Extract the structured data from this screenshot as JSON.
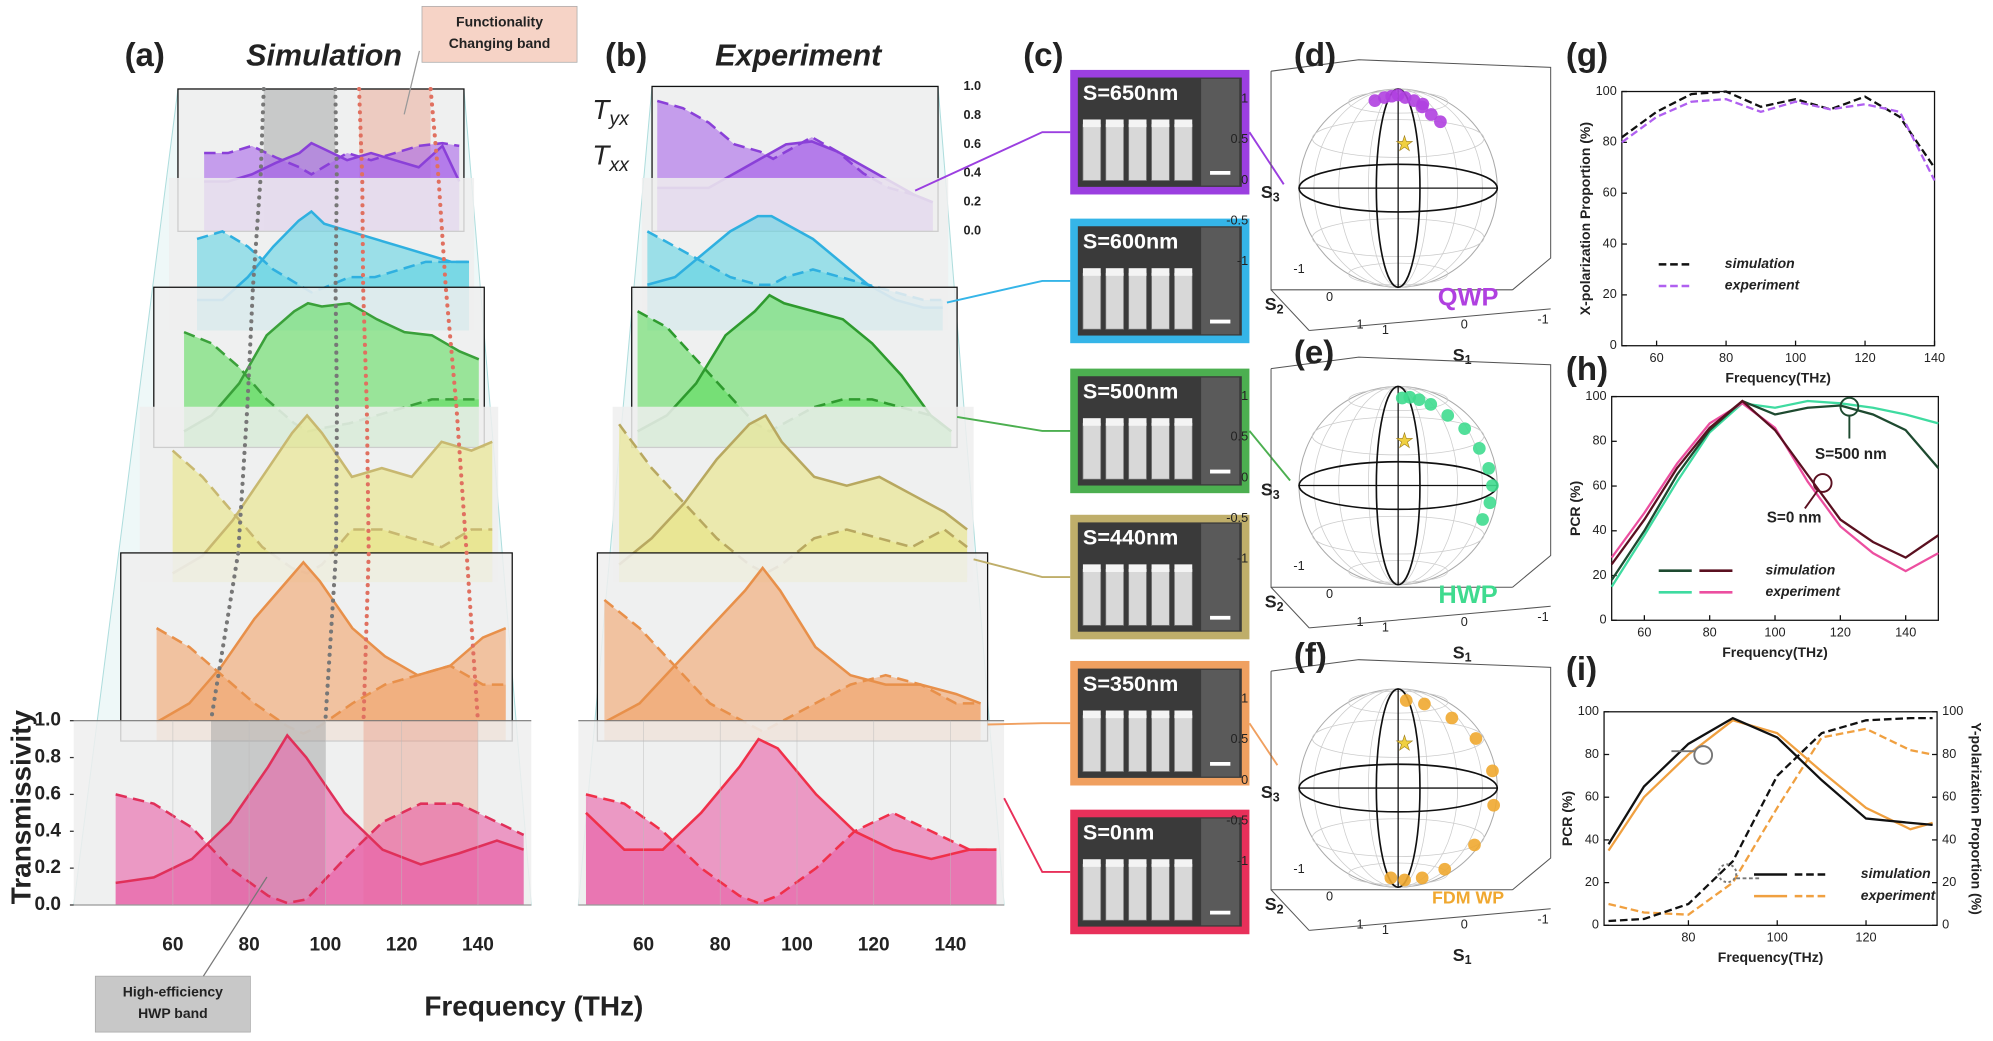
{
  "waterfall": {
    "x": [
      45,
      55,
      65,
      75,
      85,
      90,
      95,
      105,
      115,
      125,
      135,
      145,
      152
    ],
    "ylim": [
      0,
      1
    ],
    "yticks": [
      {
        "value": 0,
        "label": "0.0"
      },
      0.2,
      0.4,
      0.6,
      0.8,
      {
        "value": 1,
        "label": "1.0"
      }
    ],
    "xticks": [
      60,
      80,
      100,
      120,
      140
    ],
    "ylabel": "Transmissivity",
    "xlabel": "Frequency (THz)",
    "legend": [
      {
        "symbol": "T",
        "sub": "yx"
      },
      {
        "symbol": "T",
        "sub": "xx"
      }
    ],
    "bands": [
      {
        "range": [
          70,
          100
        ],
        "color": "#9a9a9a",
        "note": [
          "High-efficiency",
          "HWP band"
        ]
      },
      {
        "range": [
          110,
          140
        ],
        "color": "#ec9d88",
        "note": [
          "Functionality",
          "Changing band"
        ]
      }
    ],
    "panels": [
      {
        "label": "(a)",
        "title": "Simulation",
        "xlim": [
          34,
          154
        ],
        "layers": [
          {
            "color": "#e85fa6",
            "line": "#e0305a",
            "tyx": [
              0.12,
              0.15,
              0.25,
              0.45,
              0.75,
              0.92,
              0.8,
              0.5,
              0.3,
              0.22,
              0.28,
              0.35,
              0.3
            ],
            "txx": [
              0.6,
              0.55,
              0.42,
              0.2,
              0.05,
              0.01,
              0.03,
              0.25,
              0.45,
              0.55,
              0.55,
              0.45,
              0.38
            ]
          },
          {
            "color": "#f2a46a",
            "line": "#e8904a",
            "tyx": [
              0.1,
              0.2,
              0.4,
              0.65,
              0.85,
              0.95,
              0.85,
              0.6,
              0.45,
              0.35,
              0.4,
              0.55,
              0.6
            ],
            "txx": [
              0.6,
              0.5,
              0.35,
              0.2,
              0.08,
              0.04,
              0.08,
              0.2,
              0.3,
              0.35,
              0.4,
              0.3,
              0.3
            ]
          },
          {
            "color": "#e8e482",
            "line": "#c8b870",
            "tyx": [
              0.05,
              0.15,
              0.35,
              0.6,
              0.85,
              0.95,
              0.85,
              0.6,
              0.65,
              0.6,
              0.8,
              0.75,
              0.8
            ],
            "txx": [
              0.75,
              0.6,
              0.4,
              0.2,
              0.08,
              0.05,
              0.1,
              0.3,
              0.3,
              0.25,
              0.2,
              0.3,
              0.3
            ]
          },
          {
            "color": "#5fdc5f",
            "line": "#3aa03a",
            "tyx": [
              0.1,
              0.2,
              0.4,
              0.7,
              0.85,
              0.9,
              0.88,
              0.9,
              0.8,
              0.72,
              0.7,
              0.6,
              0.55
            ],
            "txx": [
              0.72,
              0.65,
              0.5,
              0.3,
              0.15,
              0.1,
              0.12,
              0.15,
              0.2,
              0.25,
              0.3,
              0.3,
              0.3
            ]
          },
          {
            "color": "#62d4e2",
            "line": "#2fb0e0",
            "tyx": [
              0.2,
              0.2,
              0.35,
              0.55,
              0.72,
              0.78,
              0.7,
              0.65,
              0.6,
              0.55,
              0.5,
              0.45,
              0.45
            ],
            "txx": [
              0.6,
              0.65,
              0.55,
              0.4,
              0.3,
              0.25,
              0.28,
              0.35,
              0.35,
              0.4,
              0.45,
              0.45,
              0.45
            ]
          },
          {
            "color": "#a866ea",
            "line": "#8a40d8",
            "tyx": [
              0.35,
              0.35,
              0.4,
              0.48,
              0.55,
              0.62,
              0.58,
              0.5,
              0.55,
              0.5,
              0.45,
              0.6,
              0.35
            ],
            "txx": [
              0.55,
              0.55,
              0.6,
              0.52,
              0.45,
              0.4,
              0.45,
              0.55,
              0.5,
              0.55,
              0.6,
              0.62,
              0.6
            ]
          }
        ]
      },
      {
        "label": "(b)",
        "title": "Experiment",
        "xlim": [
          43,
          154
        ],
        "layers": [
          {
            "color": "#e85fa6",
            "line": "#f0304a",
            "tyx": [
              0.5,
              0.3,
              0.3,
              0.5,
              0.75,
              0.9,
              0.85,
              0.6,
              0.4,
              0.3,
              0.25,
              0.3,
              0.3
            ],
            "txx": [
              0.6,
              0.55,
              0.4,
              0.2,
              0.05,
              0.01,
              0.05,
              0.2,
              0.4,
              0.5,
              0.4,
              0.3,
              0.3
            ]
          },
          {
            "color": "#f2a46a",
            "line": "#e8904a",
            "tyx": [
              0.1,
              0.2,
              0.4,
              0.6,
              0.8,
              0.92,
              0.8,
              0.5,
              0.35,
              0.3,
              0.3,
              0.25,
              0.2
            ],
            "txx": [
              0.75,
              0.6,
              0.4,
              0.2,
              0.1,
              0.05,
              0.1,
              0.2,
              0.3,
              0.35,
              0.3,
              0.2,
              0.2
            ]
          },
          {
            "color": "#e8e482",
            "line": "#b8a860",
            "tyx": [
              0.1,
              0.25,
              0.45,
              0.7,
              0.9,
              0.95,
              0.8,
              0.6,
              0.55,
              0.6,
              0.5,
              0.4,
              0.3
            ],
            "txx": [
              0.9,
              0.65,
              0.45,
              0.25,
              0.1,
              0.05,
              0.1,
              0.25,
              0.3,
              0.25,
              0.2,
              0.3,
              0.2
            ]
          },
          {
            "color": "#5fdc5f",
            "line": "#2e9a2e",
            "tyx": [
              0.1,
              0.2,
              0.4,
              0.7,
              0.85,
              0.95,
              0.9,
              0.85,
              0.8,
              0.65,
              0.45,
              0.2,
              0.1
            ],
            "txx": [
              0.85,
              0.75,
              0.55,
              0.35,
              0.15,
              0.1,
              0.15,
              0.25,
              0.3,
              0.3,
              0.25,
              0.2,
              0.1
            ]
          },
          {
            "color": "#62d4e2",
            "line": "#2fb0e0",
            "tyx": [
              0.3,
              0.35,
              0.5,
              0.65,
              0.75,
              0.75,
              0.7,
              0.6,
              0.45,
              0.3,
              0.2,
              0.15,
              0.15
            ],
            "txx": [
              0.65,
              0.55,
              0.45,
              0.35,
              0.3,
              0.3,
              0.35,
              0.4,
              0.35,
              0.3,
              0.25,
              0.2,
              0.2
            ]
          },
          {
            "color": "#a866ea",
            "line": "#8a40d8",
            "tyx": [
              0.3,
              0.3,
              0.3,
              0.4,
              0.5,
              0.55,
              0.6,
              0.62,
              0.55,
              0.45,
              0.35,
              0.25,
              0.2
            ],
            "txx": [
              0.9,
              0.85,
              0.75,
              0.6,
              0.55,
              0.5,
              0.55,
              0.65,
              0.55,
              0.4,
              0.3,
              0.25,
              0.2
            ]
          }
        ]
      }
    ]
  },
  "sem": {
    "label": "(c)",
    "items": [
      {
        "label": "S=650nm",
        "color": "#9b3fe0"
      },
      {
        "label": "S=600nm",
        "color": "#35b5e8"
      },
      {
        "label": "S=500nm",
        "color": "#4caf50"
      },
      {
        "label": "S=440nm",
        "color": "#bfae6a"
      },
      {
        "label": "S=350nm",
        "color": "#f0a060"
      },
      {
        "label": "S=0nm",
        "color": "#e8305a"
      }
    ]
  },
  "spheres": {
    "s3": {
      "symbol": "S",
      "sub": "3",
      "ticks": [
        1,
        0.5,
        0,
        -0.5,
        -1
      ]
    },
    "s2": {
      "symbol": "S",
      "sub": "2",
      "ticks": [
        -1,
        0,
        1
      ]
    },
    "s1": {
      "symbol": "S",
      "sub": "1",
      "ticks": [
        1,
        0,
        -1
      ]
    },
    "items": [
      {
        "label": "(d)",
        "mode": "QWP",
        "color": "#b040e0",
        "points": [
          [
            -30,
            62
          ],
          [
            -20,
            66
          ],
          [
            -10,
            68
          ],
          [
            0,
            70
          ],
          [
            10,
            66
          ],
          [
            20,
            62
          ],
          [
            25,
            55
          ],
          [
            30,
            48
          ],
          [
            35,
            42
          ],
          [
            28,
            58
          ]
        ]
      },
      {
        "label": "(e)",
        "mode": "HWP",
        "color": "#3fdb8f",
        "points": [
          [
            5,
            62
          ],
          [
            15,
            63
          ],
          [
            25,
            60
          ],
          [
            35,
            55
          ],
          [
            45,
            45
          ],
          [
            55,
            35
          ],
          [
            62,
            22
          ],
          [
            68,
            10
          ],
          [
            72,
            0
          ],
          [
            70,
            -10
          ],
          [
            65,
            -20
          ]
        ]
      },
      {
        "label": "(f)",
        "mode": "FDM WP",
        "color": "#f0a830",
        "points": [
          [
            10,
            62
          ],
          [
            30,
            58
          ],
          [
            50,
            45
          ],
          [
            65,
            30
          ],
          [
            75,
            10
          ],
          [
            78,
            -10
          ],
          [
            70,
            -35
          ],
          [
            55,
            -55
          ],
          [
            35,
            -65
          ],
          [
            10,
            -68
          ],
          [
            -10,
            -65
          ]
        ]
      }
    ]
  },
  "charts": [
    {
      "label": "(g)",
      "xlabel": "Frequency(THz)",
      "ylabel": "X-polarization Proportion (%)",
      "xlim": [
        50,
        140
      ],
      "ylim": [
        0,
        100
      ],
      "xticks": [
        60,
        80,
        100,
        120,
        140
      ],
      "yticks": [
        0,
        20,
        40,
        60,
        80,
        100
      ],
      "series": [
        {
          "color": "#111111",
          "dash": true,
          "x": [
            50,
            60,
            70,
            80,
            90,
            100,
            110,
            120,
            130,
            140
          ],
          "values": [
            82,
            92,
            99,
            100,
            94,
            97,
            93,
            98,
            90,
            70
          ]
        },
        {
          "color": "#b060f0",
          "dash": true,
          "x": [
            50,
            60,
            70,
            80,
            90,
            100,
            110,
            120,
            130,
            140
          ],
          "values": [
            80,
            90,
            96,
            97,
            92,
            96,
            93,
            95,
            92,
            65
          ]
        }
      ],
      "legend": [
        {
          "name": "simulation",
          "colors": [
            "#111111"
          ],
          "dash": true
        },
        {
          "name": "experiment",
          "colors": [
            "#b060f0"
          ],
          "dash": true
        }
      ]
    },
    {
      "label": "(h)",
      "xlabel": "Frequency(THz)",
      "ylabel": "PCR (%)",
      "xlim": [
        50,
        150
      ],
      "ylim": [
        0,
        100
      ],
      "xticks": [
        60,
        80,
        100,
        120,
        140
      ],
      "yticks": [
        0,
        20,
        40,
        60,
        80,
        100
      ],
      "annotations": [
        "S=500 nm",
        "S=0 nm"
      ],
      "series": [
        {
          "color": "#3fdba0",
          "x": [
            50,
            60,
            70,
            80,
            90,
            100,
            110,
            120,
            130,
            140,
            150
          ],
          "values": [
            15,
            38,
            62,
            84,
            97,
            95,
            98,
            97,
            95,
            92,
            88
          ]
        },
        {
          "color": "#ec4fa0",
          "x": [
            50,
            60,
            70,
            80,
            90,
            100,
            110,
            120,
            130,
            140,
            150
          ],
          "values": [
            28,
            48,
            70,
            88,
            97,
            86,
            62,
            42,
            30,
            22,
            30
          ]
        },
        {
          "color": "#1e4a30",
          "x": [
            50,
            60,
            70,
            80,
            90,
            100,
            110,
            120,
            130,
            140,
            150
          ],
          "values": [
            18,
            40,
            65,
            85,
            98,
            92,
            95,
            96,
            92,
            85,
            68
          ]
        },
        {
          "color": "#5a1020",
          "x": [
            50,
            60,
            70,
            80,
            90,
            100,
            110,
            120,
            130,
            140,
            150
          ],
          "values": [
            25,
            45,
            68,
            86,
            98,
            85,
            65,
            45,
            35,
            28,
            38
          ]
        }
      ],
      "legend": [
        {
          "name": "simulation",
          "colors": [
            "#1e4a30",
            "#5a1020"
          ]
        },
        {
          "name": "experiment",
          "colors": [
            "#3fdba0",
            "#ec4fa0"
          ]
        }
      ]
    },
    {
      "label": "(i)",
      "xlabel": "Frequency(THz)",
      "ylabel": "PCR (%)",
      "y2label": "Y-polarization Proportion (%)",
      "xlim": [
        61,
        136
      ],
      "ylim": [
        0,
        100
      ],
      "y2lim": [
        0,
        100
      ],
      "xticks": [
        80,
        100,
        120
      ],
      "yticks": [
        0,
        20,
        40,
        60,
        80,
        100
      ],
      "y2ticks": [
        0,
        20,
        40,
        60,
        80,
        100
      ],
      "series": [
        {
          "color": "#f0a040",
          "x": [
            62,
            70,
            80,
            90,
            100,
            110,
            120,
            130,
            135
          ],
          "values": [
            35,
            60,
            80,
            96,
            90,
            72,
            55,
            45,
            48
          ]
        },
        {
          "color": "#f0a040",
          "dash": true,
          "axis": "y2",
          "x": [
            62,
            70,
            80,
            90,
            100,
            110,
            120,
            130,
            135
          ],
          "values": [
            10,
            6,
            5,
            20,
            55,
            88,
            92,
            82,
            80
          ]
        },
        {
          "color": "#111111",
          "x": [
            62,
            70,
            80,
            90,
            100,
            110,
            120,
            130,
            135
          ],
          "values": [
            38,
            65,
            85,
            97,
            88,
            68,
            50,
            48,
            47
          ]
        },
        {
          "color": "#111111",
          "dash": true,
          "axis": "y2",
          "x": [
            62,
            70,
            80,
            90,
            100,
            110,
            120,
            130,
            135
          ],
          "values": [
            2,
            3,
            10,
            30,
            70,
            90,
            96,
            97,
            97
          ]
        }
      ],
      "legend": [
        {
          "name": "simulation",
          "colors": [
            "#111111",
            "#111111"
          ],
          "dash2": true
        },
        {
          "name": "experiment",
          "colors": [
            "#f0a040",
            "#f0a040"
          ],
          "dash2": true
        }
      ]
    }
  ]
}
